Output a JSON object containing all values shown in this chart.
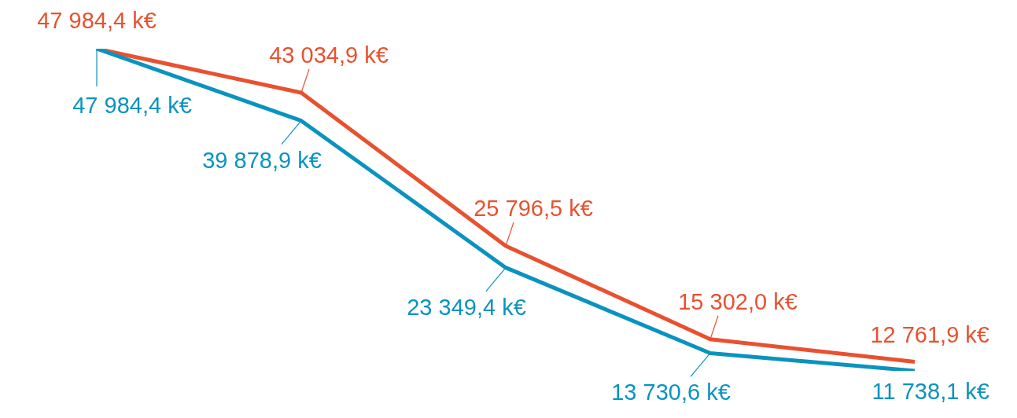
{
  "chart_data": {
    "type": "line",
    "categories": [
      null,
      null,
      null,
      null,
      null
    ],
    "marker": "none",
    "legend": false,
    "grid": false,
    "series": [
      {
        "color": "#e8512f",
        "values": [
          47984.4,
          43034.9,
          25796.5,
          15302.0,
          12761.9
        ],
        "value_labels": [
          "47 984,4 k€",
          "43 034,9 k€",
          "25 796,5 k€",
          "15 302,0 k€",
          "12 761,9 k€"
        ]
      },
      {
        "color": "#0a93bf",
        "values": [
          47984.4,
          39878.9,
          23349.4,
          13730.6,
          11738.1
        ],
        "value_labels": [
          "47 984,4 k€",
          "39 878,9 k€",
          "23 349,4 k€",
          "13 730,6 k€",
          "11 738,1 k€"
        ]
      }
    ]
  }
}
